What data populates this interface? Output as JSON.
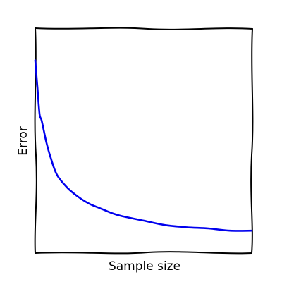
{
  "chart_data": {
    "type": "line",
    "title": "",
    "xlabel": "Sample size",
    "ylabel": "Error",
    "style": "hand-drawn (xkcd)",
    "grid": false,
    "legend": "none",
    "xlim": [
      0,
      100
    ],
    "ylim": [
      0,
      1
    ],
    "series": [
      {
        "color": "#0000ee",
        "x": [
          0,
          1,
          2,
          3,
          5,
          7,
          10,
          15,
          20,
          25,
          30,
          35,
          40,
          50,
          60,
          70,
          80,
          90,
          100
        ],
        "values": [
          0.86,
          0.74,
          0.62,
          0.59,
          0.5,
          0.43,
          0.35,
          0.29,
          0.25,
          0.22,
          0.2,
          0.18,
          0.165,
          0.145,
          0.125,
          0.115,
          0.11,
          0.1,
          0.1
        ]
      }
    ]
  }
}
